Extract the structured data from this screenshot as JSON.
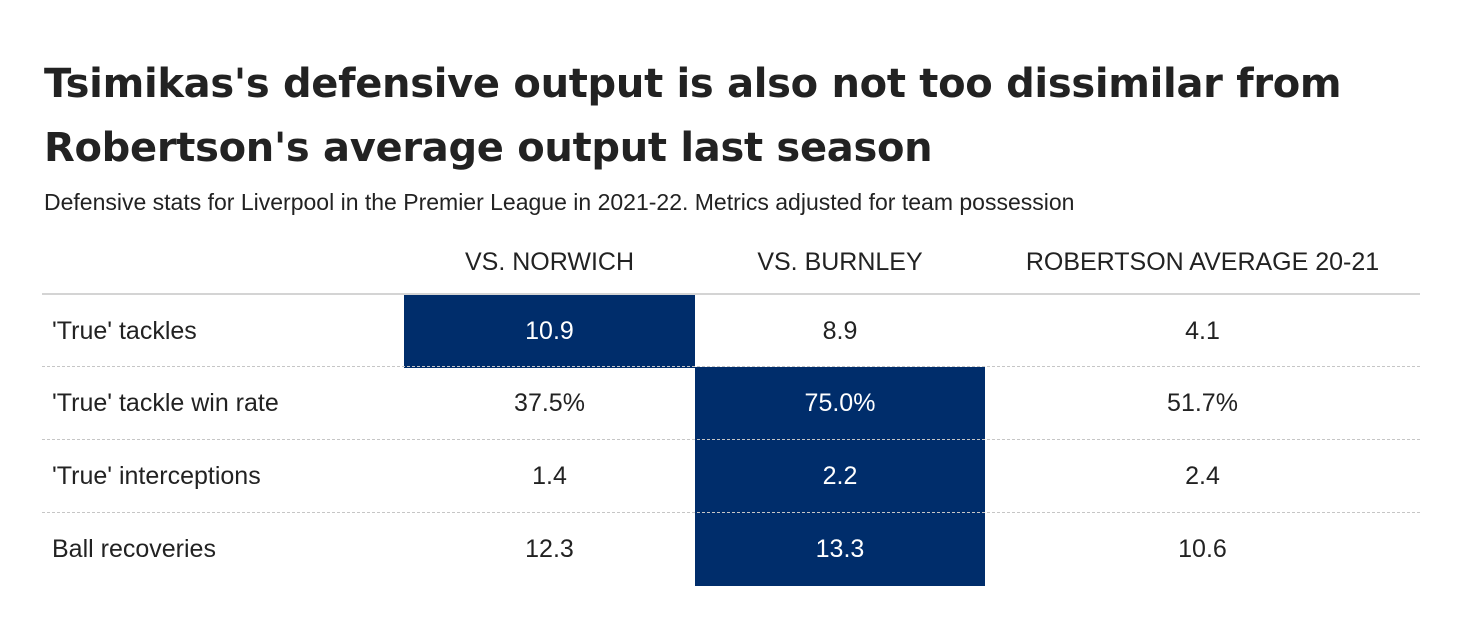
{
  "title": "Tsimikas's defensive output is also not too dissimilar from Robertson's average output last season",
  "subtitle": "Defensive stats for Liverpool in the Premier League in 2021-22. Metrics adjusted for team possession",
  "colors": {
    "highlight": "#002d6b",
    "highlight_text": "#ffffff",
    "text": "#222222",
    "header_rule": "#d4d4d4",
    "row_rule": "#c6c6c6"
  },
  "chart_data": {
    "type": "table",
    "columns": [
      "VS. NORWICH",
      "VS. BURNLEY",
      "ROBERTSON AVERAGE 20-21"
    ],
    "rows": [
      {
        "label": "'True' tackles",
        "values": [
          "10.9",
          "8.9",
          "4.1"
        ],
        "highlight": [
          true,
          false,
          false
        ]
      },
      {
        "label": "'True' tackle win rate",
        "values": [
          "37.5%",
          "75.0%",
          "51.7%"
        ],
        "highlight": [
          false,
          true,
          false
        ]
      },
      {
        "label": "'True' interceptions",
        "values": [
          "1.4",
          "2.2",
          "2.4"
        ],
        "highlight": [
          false,
          true,
          false
        ]
      },
      {
        "label": "Ball recoveries",
        "values": [
          "12.3",
          "13.3",
          "10.6"
        ],
        "highlight": [
          false,
          true,
          false
        ]
      }
    ]
  }
}
